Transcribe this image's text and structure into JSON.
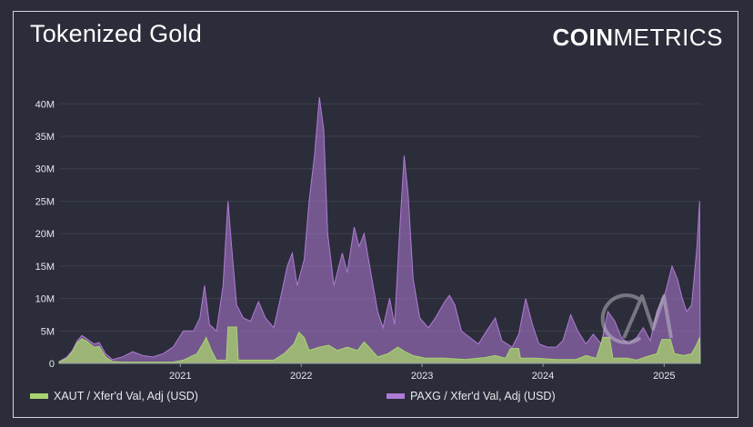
{
  "header": {
    "title": "Tokenized Gold",
    "brand_bold": "COIN",
    "brand_light": "METRICS"
  },
  "legend": {
    "xaut": "XAUT / Xfer'd Val, Adj (USD)",
    "paxg": "PAXG / Xfer'd Val, Adj (USD)"
  },
  "colors": {
    "background": "#2b2d3a",
    "xaut": "#a9d46f",
    "paxg": "#b07ad6",
    "grid": "#3d3f4c",
    "text": "#e6e7ec"
  },
  "chart_data": {
    "type": "area",
    "title": "Tokenized Gold",
    "y_ticks": [
      "0",
      "5M",
      "10M",
      "15M",
      "20M",
      "25M",
      "30M",
      "35M",
      "40M"
    ],
    "ylim": [
      0,
      42000000
    ],
    "x_ticks": [
      "2021",
      "2022",
      "2023",
      "2024",
      "2025"
    ],
    "x_range": [
      "2020-01-01",
      "2025-04-20"
    ],
    "grid": true,
    "legend_position": "bottom",
    "series": [
      {
        "name": "PAXG / Xfer'd Val, Adj (USD)",
        "color": "#b07ad6",
        "points": [
          [
            "2020-01-01",
            0.3
          ],
          [
            "2020-01-25",
            1.0
          ],
          [
            "2020-02-10",
            2.0
          ],
          [
            "2020-02-25",
            3.5
          ],
          [
            "2020-03-10",
            4.3
          ],
          [
            "2020-03-25",
            3.8
          ],
          [
            "2020-04-15",
            3.0
          ],
          [
            "2020-05-01",
            3.2
          ],
          [
            "2020-05-20",
            1.5
          ],
          [
            "2020-06-10",
            0.6
          ],
          [
            "2020-07-10",
            1.0
          ],
          [
            "2020-08-10",
            1.8
          ],
          [
            "2020-09-10",
            1.2
          ],
          [
            "2020-10-10",
            1.0
          ],
          [
            "2020-11-10",
            1.5
          ],
          [
            "2020-12-10",
            2.5
          ],
          [
            "2021-01-10",
            5.0
          ],
          [
            "2021-02-10",
            5.0
          ],
          [
            "2021-03-01",
            7.0
          ],
          [
            "2021-03-15",
            12.0
          ],
          [
            "2021-03-30",
            6.0
          ],
          [
            "2021-04-20",
            5.0
          ],
          [
            "2021-05-10",
            12.0
          ],
          [
            "2021-05-25",
            25.0
          ],
          [
            "2021-06-05",
            18.0
          ],
          [
            "2021-06-20",
            9.0
          ],
          [
            "2021-07-10",
            7.0
          ],
          [
            "2021-08-01",
            6.5
          ],
          [
            "2021-08-25",
            9.5
          ],
          [
            "2021-09-15",
            7.0
          ],
          [
            "2021-10-10",
            5.5
          ],
          [
            "2021-10-30",
            10.0
          ],
          [
            "2021-11-20",
            15.0
          ],
          [
            "2021-12-05",
            17.0
          ],
          [
            "2021-12-20",
            12.0
          ],
          [
            "2022-01-10",
            16.0
          ],
          [
            "2022-01-25",
            25.0
          ],
          [
            "2022-02-10",
            32.0
          ],
          [
            "2022-02-25",
            41.0
          ],
          [
            "2022-03-10",
            36.0
          ],
          [
            "2022-03-22",
            20.0
          ],
          [
            "2022-04-10",
            12.0
          ],
          [
            "2022-05-05",
            17.0
          ],
          [
            "2022-05-20",
            14.0
          ],
          [
            "2022-06-10",
            21.0
          ],
          [
            "2022-06-25",
            18.0
          ],
          [
            "2022-07-10",
            20.0
          ],
          [
            "2022-07-30",
            14.0
          ],
          [
            "2022-08-20",
            8.0
          ],
          [
            "2022-09-05",
            5.5
          ],
          [
            "2022-09-25",
            10.0
          ],
          [
            "2022-10-10",
            6.0
          ],
          [
            "2022-10-25",
            20.0
          ],
          [
            "2022-11-08",
            32.0
          ],
          [
            "2022-11-20",
            26.0
          ],
          [
            "2022-12-05",
            13.0
          ],
          [
            "2022-12-25",
            7.0
          ],
          [
            "2023-01-20",
            5.5
          ],
          [
            "2023-02-10",
            7.0
          ],
          [
            "2023-03-10",
            9.5
          ],
          [
            "2023-03-25",
            10.5
          ],
          [
            "2023-04-10",
            9.0
          ],
          [
            "2023-04-30",
            5.0
          ],
          [
            "2023-05-25",
            4.0
          ],
          [
            "2023-06-20",
            3.0
          ],
          [
            "2023-07-15",
            5.0
          ],
          [
            "2023-08-10",
            7.0
          ],
          [
            "2023-08-30",
            3.5
          ],
          [
            "2023-09-30",
            2.5
          ],
          [
            "2023-10-20",
            4.5
          ],
          [
            "2023-11-10",
            10.0
          ],
          [
            "2023-11-30",
            6.0
          ],
          [
            "2023-12-20",
            3.0
          ],
          [
            "2024-01-15",
            2.5
          ],
          [
            "2024-02-10",
            2.5
          ],
          [
            "2024-03-01",
            3.5
          ],
          [
            "2024-03-25",
            7.5
          ],
          [
            "2024-04-15",
            5.0
          ],
          [
            "2024-05-10",
            3.0
          ],
          [
            "2024-06-01",
            4.5
          ],
          [
            "2024-06-25",
            3.0
          ],
          [
            "2024-07-15",
            8.0
          ],
          [
            "2024-08-05",
            6.5
          ],
          [
            "2024-08-25",
            4.0
          ],
          [
            "2024-09-15",
            3.0
          ],
          [
            "2024-10-10",
            4.0
          ],
          [
            "2024-10-30",
            5.5
          ],
          [
            "2024-11-20",
            3.5
          ],
          [
            "2024-12-10",
            8.0
          ],
          [
            "2025-01-05",
            11.0
          ],
          [
            "2025-01-25",
            15.0
          ],
          [
            "2025-02-10",
            13.0
          ],
          [
            "2025-02-25",
            10.0
          ],
          [
            "2025-03-10",
            8.0
          ],
          [
            "2025-03-25",
            9.0
          ],
          [
            "2025-04-10",
            18.0
          ],
          [
            "2025-04-18",
            25.0
          ],
          [
            "2025-04-20",
            0
          ]
        ]
      },
      {
        "name": "XAUT / Xfer'd Val, Adj (USD)",
        "color": "#a9d46f",
        "points": [
          [
            "2020-01-01",
            0.2
          ],
          [
            "2020-01-25",
            0.8
          ],
          [
            "2020-02-10",
            1.8
          ],
          [
            "2020-02-25",
            3.2
          ],
          [
            "2020-03-10",
            3.8
          ],
          [
            "2020-03-25",
            3.4
          ],
          [
            "2020-04-15",
            2.5
          ],
          [
            "2020-05-01",
            2.6
          ],
          [
            "2020-05-20",
            1.0
          ],
          [
            "2020-06-10",
            0.3
          ],
          [
            "2020-07-10",
            0.2
          ],
          [
            "2020-09-10",
            0.2
          ],
          [
            "2020-12-10",
            0.2
          ],
          [
            "2021-01-10",
            0.5
          ],
          [
            "2021-02-20",
            1.5
          ],
          [
            "2021-03-10",
            3.0
          ],
          [
            "2021-03-20",
            4.0
          ],
          [
            "2021-04-05",
            2.0
          ],
          [
            "2021-04-20",
            0.5
          ],
          [
            "2021-05-20",
            0.5
          ],
          [
            "2021-05-25",
            5.6
          ],
          [
            "2021-06-20",
            5.6
          ],
          [
            "2021-06-25",
            0.5
          ],
          [
            "2021-08-01",
            0.5
          ],
          [
            "2021-10-10",
            0.5
          ],
          [
            "2021-11-10",
            1.5
          ],
          [
            "2021-12-10",
            3.0
          ],
          [
            "2021-12-25",
            4.8
          ],
          [
            "2022-01-10",
            4.0
          ],
          [
            "2022-01-25",
            2.0
          ],
          [
            "2022-02-25",
            2.5
          ],
          [
            "2022-03-25",
            2.8
          ],
          [
            "2022-04-20",
            2.0
          ],
          [
            "2022-05-20",
            2.5
          ],
          [
            "2022-06-20",
            2.0
          ],
          [
            "2022-07-10",
            3.3
          ],
          [
            "2022-07-25",
            2.5
          ],
          [
            "2022-08-20",
            1.0
          ],
          [
            "2022-09-20",
            1.5
          ],
          [
            "2022-10-20",
            2.5
          ],
          [
            "2022-11-10",
            1.8
          ],
          [
            "2022-12-05",
            1.2
          ],
          [
            "2023-01-10",
            0.8
          ],
          [
            "2023-03-10",
            0.8
          ],
          [
            "2023-05-10",
            0.6
          ],
          [
            "2023-07-10",
            0.9
          ],
          [
            "2023-08-10",
            1.2
          ],
          [
            "2023-09-10",
            0.8
          ],
          [
            "2023-09-25",
            2.3
          ],
          [
            "2023-10-20",
            2.3
          ],
          [
            "2023-10-25",
            0.8
          ],
          [
            "2023-12-10",
            0.8
          ],
          [
            "2024-02-10",
            0.6
          ],
          [
            "2024-04-10",
            0.6
          ],
          [
            "2024-05-10",
            1.2
          ],
          [
            "2024-06-10",
            0.8
          ],
          [
            "2024-06-30",
            4.0
          ],
          [
            "2024-07-20",
            4.0
          ],
          [
            "2024-07-30",
            0.8
          ],
          [
            "2024-09-10",
            0.8
          ],
          [
            "2024-10-10",
            0.5
          ],
          [
            "2024-11-20",
            1.2
          ],
          [
            "2024-12-10",
            1.5
          ],
          [
            "2024-12-25",
            3.7
          ],
          [
            "2025-01-20",
            3.7
          ],
          [
            "2025-02-01",
            1.5
          ],
          [
            "2025-03-01",
            1.2
          ],
          [
            "2025-03-25",
            1.5
          ],
          [
            "2025-04-10",
            3.0
          ],
          [
            "2025-04-18",
            4.0
          ],
          [
            "2025-04-20",
            0
          ]
        ]
      }
    ]
  }
}
